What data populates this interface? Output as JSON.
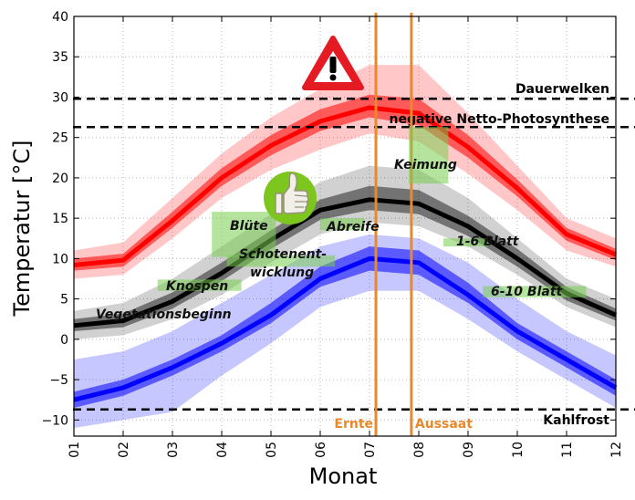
{
  "chart_data": {
    "type": "line",
    "xlabel": "Monat",
    "ylabel": "Temperatur [°C]",
    "x": [
      "01",
      "02",
      "03",
      "04",
      "05",
      "06",
      "07",
      "08",
      "09",
      "10",
      "11",
      "12"
    ],
    "xlim": [
      1,
      12
    ],
    "ylim": [
      -12,
      40
    ],
    "yticks": [
      -10,
      -5,
      0,
      5,
      10,
      15,
      20,
      25,
      30,
      35,
      40
    ],
    "grid": true,
    "series": [
      {
        "color": "#ff0000",
        "values": [
          9.2,
          9.8,
          14.7,
          20.0,
          24.0,
          27.0,
          28.7,
          28.0,
          23.8,
          18.7,
          13.0,
          10.5
        ],
        "band_inner": [
          [
            8.5,
            10.0
          ],
          [
            9.0,
            10.6
          ],
          [
            13.8,
            15.8
          ],
          [
            19.0,
            21.2
          ],
          [
            22.8,
            25.3
          ],
          [
            25.8,
            28.5
          ],
          [
            27.5,
            30.3
          ],
          [
            26.5,
            29.8
          ],
          [
            22.5,
            25.3
          ],
          [
            17.7,
            19.8
          ],
          [
            12.2,
            13.8
          ],
          [
            9.8,
            11.2
          ]
        ],
        "band_outer": [
          [
            7.5,
            11.0
          ],
          [
            8.0,
            12.0
          ],
          [
            12.5,
            17.5
          ],
          [
            17.5,
            23.0
          ],
          [
            21.0,
            27.5
          ],
          [
            23.5,
            31.0
          ],
          [
            25.5,
            34.0
          ],
          [
            24.5,
            34.0
          ],
          [
            20.5,
            28.0
          ],
          [
            16.0,
            21.5
          ],
          [
            11.0,
            15.0
          ],
          [
            9.0,
            12.5
          ]
        ]
      },
      {
        "color": "#000000",
        "values": [
          1.7,
          2.3,
          4.7,
          8.2,
          12.3,
          16.0,
          17.3,
          16.8,
          14.0,
          10.0,
          5.7,
          3.0
        ],
        "band_inner": [
          [
            1.0,
            2.5
          ],
          [
            1.5,
            3.2
          ],
          [
            3.8,
            5.8
          ],
          [
            7.2,
            9.5
          ],
          [
            11.2,
            13.5
          ],
          [
            14.8,
            17.3
          ],
          [
            16.0,
            19.0
          ],
          [
            15.5,
            18.5
          ],
          [
            12.8,
            15.3
          ],
          [
            9.0,
            11.2
          ],
          [
            4.8,
            6.5
          ],
          [
            2.3,
            3.8
          ]
        ],
        "band_outer": [
          [
            0.0,
            3.5
          ],
          [
            0.5,
            4.5
          ],
          [
            2.5,
            7.5
          ],
          [
            5.5,
            11.5
          ],
          [
            9.5,
            15.5
          ],
          [
            13.0,
            19.5
          ],
          [
            14.5,
            21.5
          ],
          [
            14.0,
            21.0
          ],
          [
            11.5,
            17.5
          ],
          [
            8.0,
            12.5
          ],
          [
            4.0,
            7.5
          ],
          [
            1.5,
            5.0
          ]
        ]
      },
      {
        "color": "#0000ff",
        "values": [
          -7.5,
          -6.0,
          -3.5,
          -0.5,
          3.0,
          7.5,
          10.0,
          9.5,
          5.5,
          1.0,
          -2.5,
          -6.0
        ],
        "band_inner": [
          [
            -8.5,
            -6.5
          ],
          [
            -7.0,
            -5.0
          ],
          [
            -4.5,
            -2.5
          ],
          [
            -1.5,
            0.5
          ],
          [
            2.0,
            4.5
          ],
          [
            6.5,
            9.0
          ],
          [
            8.5,
            11.5
          ],
          [
            8.0,
            11.0
          ],
          [
            4.5,
            7.0
          ],
          [
            0.0,
            2.0
          ],
          [
            -3.5,
            -1.5
          ],
          [
            -7.0,
            -5.0
          ]
        ],
        "band_outer": [
          [
            -11.0,
            -2.5
          ],
          [
            -10.0,
            -1.5
          ],
          [
            -9.0,
            1.0
          ],
          [
            -4.5,
            4.5
          ],
          [
            -0.5,
            8.0
          ],
          [
            4.0,
            11.5
          ],
          [
            6.0,
            13.0
          ],
          [
            6.0,
            12.5
          ],
          [
            2.5,
            9.5
          ],
          [
            -1.5,
            5.0
          ],
          [
            -5.0,
            1.0
          ],
          [
            -8.5,
            -2.0
          ]
        ]
      }
    ],
    "hlines": [
      {
        "y": 29.8,
        "label": "Dauerwelken"
      },
      {
        "y": 26.3,
        "label": "negative Netto-Photosynthese"
      },
      {
        "y": -8.7,
        "label": "Kahlfrost"
      }
    ],
    "vlines": [
      {
        "x": 7.13,
        "label": "Ernte",
        "color": "#e8892a"
      },
      {
        "x": 7.85,
        "label": "Aussaat",
        "color": "#e8892a"
      }
    ],
    "stages": [
      {
        "label": "Vegetationsbeginn",
        "x": [
          1.4,
          2.8
        ],
        "y": [
          1.0,
          3.0
        ]
      },
      {
        "label": "Knospen",
        "x": [
          2.7,
          4.4
        ],
        "y": [
          6.0,
          7.4
        ]
      },
      {
        "label": "Blüte",
        "x": [
          3.8,
          5.1
        ],
        "y": [
          10.2,
          15.8
        ]
      },
      {
        "label": "Schotenent-\nwicklung",
        "x": [
          4.1,
          6.3
        ],
        "y": [
          9.0,
          10.4
        ]
      },
      {
        "label": "Abreife",
        "x": [
          6.0,
          6.9
        ],
        "y": [
          13.5,
          15.0
        ]
      },
      {
        "label": "Keimung",
        "x": [
          7.8,
          8.6
        ],
        "y": [
          19.3,
          26.3
        ]
      },
      {
        "label": "1-6 Blatt",
        "x": [
          8.5,
          9.4
        ],
        "y": [
          11.5,
          12.5
        ]
      },
      {
        "label": "6-10 Blatt",
        "x": [
          9.3,
          11.4
        ],
        "y": [
          5.2,
          6.6
        ]
      }
    ],
    "icons": [
      "warning-triangle-icon",
      "thumbs-up-icon"
    ]
  }
}
